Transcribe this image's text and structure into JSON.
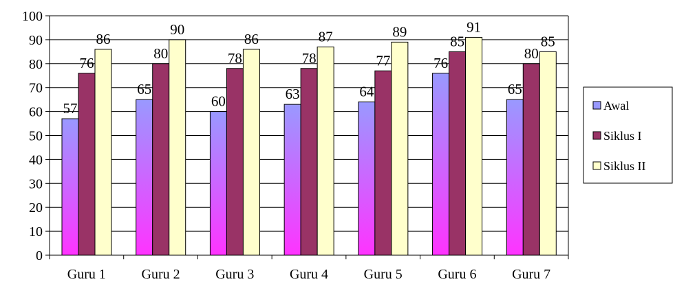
{
  "chart_data": {
    "type": "bar",
    "categories": [
      "Guru 1",
      "Guru 2",
      "Guru 3",
      "Guru 4",
      "Guru 5",
      "Guru 6",
      "Guru 7"
    ],
    "series": [
      {
        "name": "Awal",
        "values": [
          57,
          65,
          60,
          63,
          64,
          76,
          65
        ]
      },
      {
        "name": "Siklus I",
        "values": [
          76,
          80,
          78,
          78,
          77,
          85,
          80
        ]
      },
      {
        "name": "Siklus II",
        "values": [
          86,
          90,
          86,
          87,
          89,
          91,
          85
        ]
      }
    ],
    "title": "",
    "xlabel": "",
    "ylabel": "",
    "ylim": [
      0,
      100
    ],
    "yticks": [
      0,
      10,
      20,
      30,
      40,
      50,
      60,
      70,
      80,
      90,
      100
    ],
    "grid": true,
    "legend": "right",
    "data_labels": true
  },
  "colors": {
    "awal_top": "#9999ff",
    "awal_bottom": "#ff33ff",
    "siklus1": "#993366",
    "siklus2": "#ffffcc",
    "outline": "#000000",
    "gridline": "#000000"
  }
}
